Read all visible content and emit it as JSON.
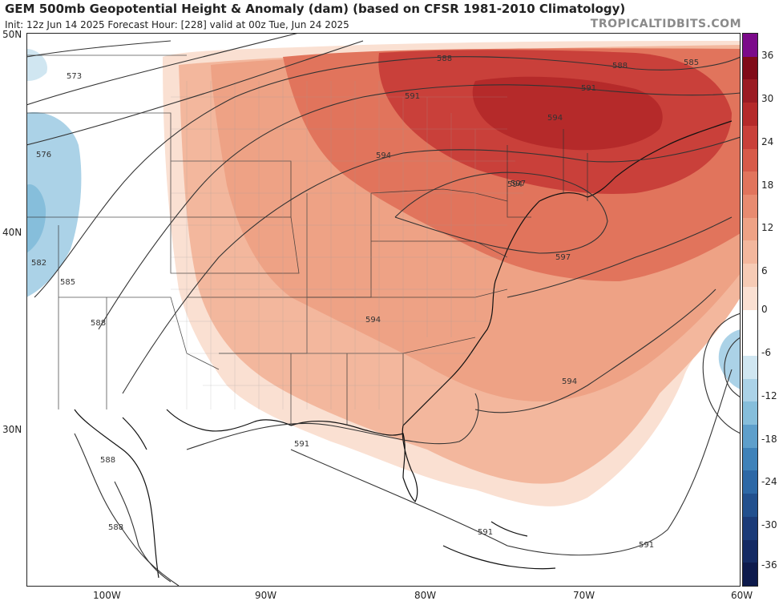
{
  "header": {
    "title": "GEM 500mb Geopotential Height & Anomaly (dam) (based on CFSR 1981-2010 Climatology)",
    "subtitle": "Init: 12z Jun 14 2025   Forecast Hour: [228]   valid at 00z Tue, Jun 24 2025",
    "brand": "TROPICALTIDBITS.COM"
  },
  "axes": {
    "lat_labels": [
      "50N",
      "40N",
      "30N"
    ],
    "lon_labels": [
      "100W",
      "90W",
      "80W",
      "70W",
      "60W"
    ]
  },
  "contour_labels": [
    "573",
    "576",
    "582",
    "585",
    "588",
    "588",
    "588",
    "588",
    "591",
    "591",
    "591",
    "591",
    "591",
    "594",
    "594",
    "594",
    "594",
    "594",
    "597",
    "597",
    "588",
    "585"
  ],
  "colorbar": {
    "ticks": [
      "36",
      "30",
      "24",
      "18",
      "12",
      "6",
      "0",
      "-6",
      "-12",
      "-18",
      "-24",
      "-30",
      "-36"
    ],
    "colors": [
      "#7b0a8a",
      "#800b18",
      "#9b1c23",
      "#b52a2a",
      "#c9403a",
      "#d75a49",
      "#e1745c",
      "#e88b70",
      "#eea285",
      "#f3b79d",
      "#f6cbb5",
      "#fae0d2",
      "#ffffff",
      "#ffffff",
      "#d0e6f1",
      "#abd2e7",
      "#86bedb",
      "#5e9fcb",
      "#3f82b9",
      "#2d68a6",
      "#22508e",
      "#1b3b78",
      "#142a63",
      "#0d1a4c"
    ]
  }
}
